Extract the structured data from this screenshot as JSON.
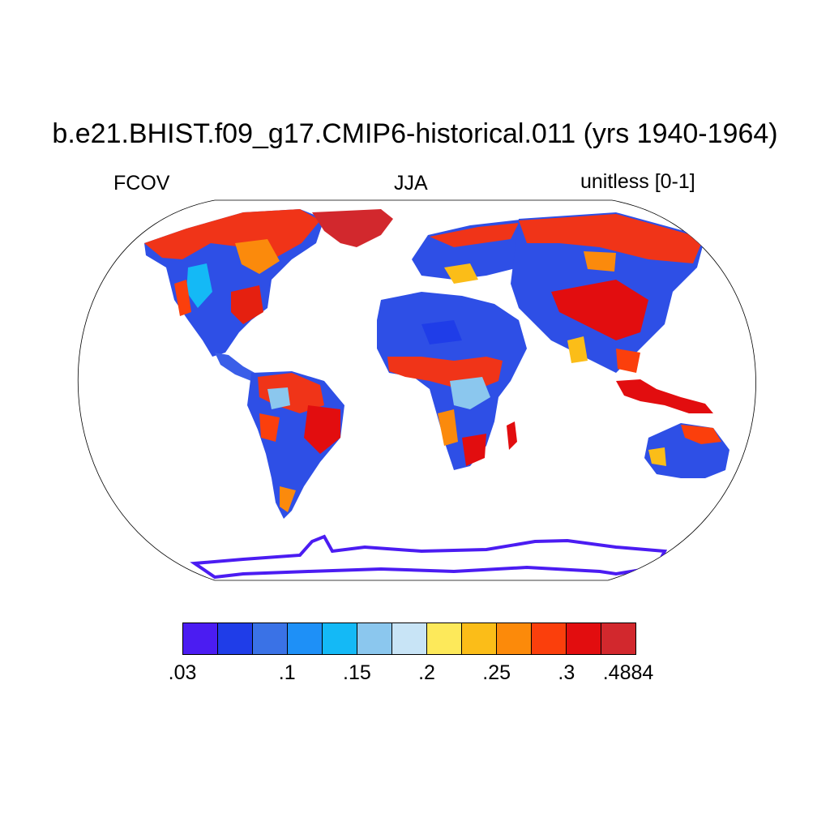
{
  "title": "b.e21.BHIST.f09_g17.CMIP6-historical.011 (yrs 1940-1964)",
  "subtitle_left": "FCOV",
  "subtitle_center": "JJA",
  "subtitle_right": "unitless [0-1]",
  "colorbar": {
    "colors": [
      "#4b1cf2",
      "#1f3de8",
      "#3a72e6",
      "#1e90f7",
      "#14b9f6",
      "#8bc7ee",
      "#c8e4f6",
      "#fde95a",
      "#fbbd18",
      "#fc8a0a",
      "#fb3f0c",
      "#e20d0f",
      "#d2282d"
    ],
    "labels": [
      {
        "text": ".03",
        "index": 0
      },
      {
        "text": ".1",
        "index": 3
      },
      {
        "text": ".15",
        "index": 5
      },
      {
        "text": ".2",
        "index": 7
      },
      {
        "text": ".25",
        "index": 9
      },
      {
        "text": ".3",
        "index": 11
      },
      {
        "text": ".4884",
        "index": 13
      }
    ]
  }
}
